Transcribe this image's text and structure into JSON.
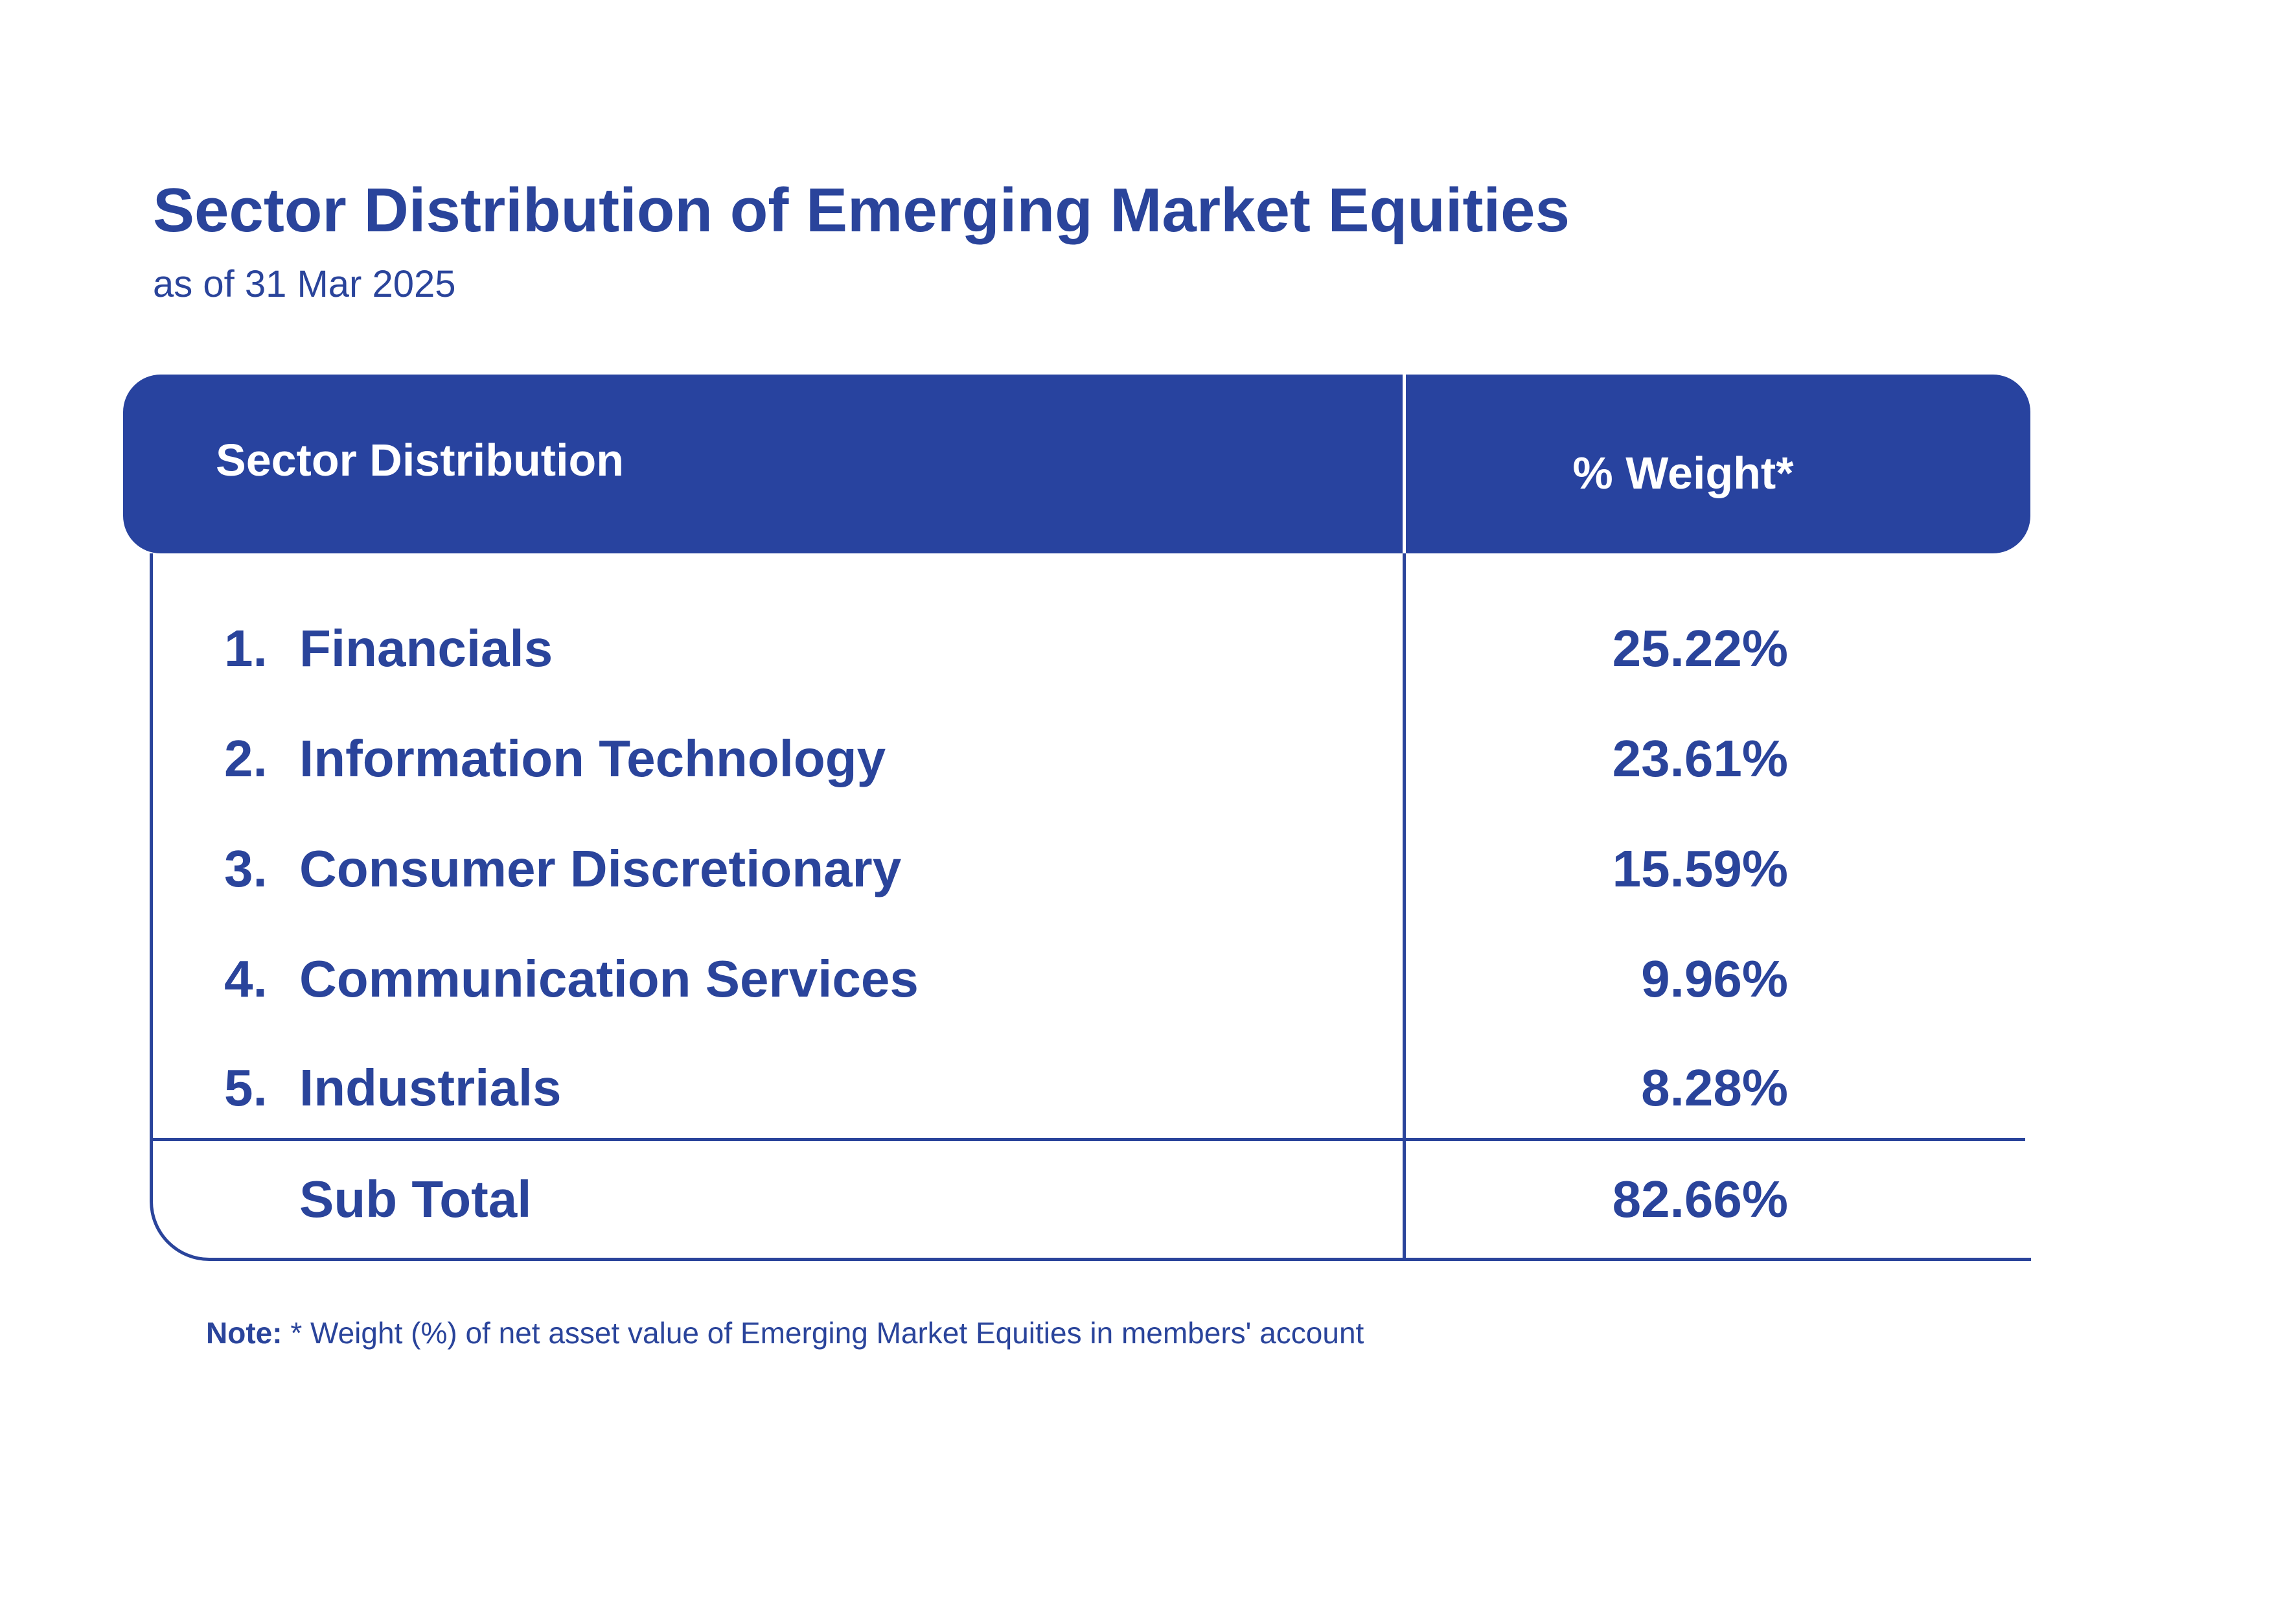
{
  "title": "Sector Distribution of Emerging Market Equities",
  "subtitle": "as of  31 Mar 2025",
  "table": {
    "header": {
      "col1": "Sector Distribution",
      "col2": "% Weight*"
    },
    "rows": [
      {
        "num": "1.",
        "name": "Financials",
        "value": "25.22%"
      },
      {
        "num": "2.",
        "name": "Information Technology",
        "value": "23.61%"
      },
      {
        "num": "3.",
        "name": "Consumer Discretionary",
        "value": "15.59%"
      },
      {
        "num": "4.",
        "name": "Communication Services",
        "value": "9.96%"
      },
      {
        "num": "5.",
        "name": "Industrials",
        "value": "8.28%"
      }
    ],
    "subtotal": {
      "label": "Sub Total",
      "value": "82.66%"
    }
  },
  "note": {
    "label": "Note:",
    "text": " * Weight (%) of net asset value of Emerging Market Equities in members' account"
  },
  "colors": {
    "brand_blue": "#28439f",
    "text_blue": "#2a449b",
    "background": "#ffffff"
  }
}
